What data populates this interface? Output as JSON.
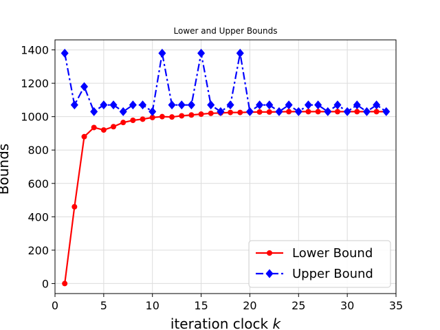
{
  "chart_data": {
    "type": "line",
    "title": "Lower and Upper Bounds",
    "xlabel": "iteration clock",
    "xlabel_var": "k",
    "ylabel": "Bounds",
    "xlim": [
      0,
      35
    ],
    "ylim": [
      -60,
      1460
    ],
    "xticks": [
      0,
      5,
      10,
      15,
      20,
      25,
      30,
      35
    ],
    "yticks": [
      0,
      200,
      400,
      600,
      800,
      1000,
      1200,
      1400
    ],
    "grid": true,
    "legend_position": "lower-right",
    "series": [
      {
        "name": "Lower Bound",
        "color": "#ff0000",
        "marker": "circle",
        "linestyle": "solid",
        "x": [
          1,
          2,
          3,
          4,
          5,
          6,
          7,
          8,
          9,
          10,
          11,
          12,
          13,
          14,
          15,
          16,
          17,
          18,
          19,
          20,
          21,
          22,
          23,
          24,
          25,
          26,
          27,
          28,
          29,
          30,
          31,
          32,
          33,
          34
        ],
        "values": [
          0,
          460,
          880,
          935,
          920,
          940,
          965,
          978,
          985,
          995,
          1000,
          998,
          1005,
          1010,
          1015,
          1020,
          1022,
          1025,
          1025,
          1027,
          1028,
          1028,
          1029,
          1030,
          1030,
          1030,
          1030,
          1030,
          1030,
          1030,
          1030,
          1030,
          1030,
          1030
        ]
      },
      {
        "name": "Upper Bound",
        "color": "#0000ff",
        "marker": "diamond",
        "linestyle": "dashdot",
        "x": [
          1,
          2,
          3,
          4,
          5,
          6,
          7,
          8,
          9,
          10,
          11,
          12,
          13,
          14,
          15,
          16,
          17,
          18,
          19,
          20,
          21,
          22,
          23,
          24,
          25,
          26,
          27,
          28,
          29,
          30,
          31,
          32,
          33,
          34
        ],
        "values": [
          1380,
          1070,
          1180,
          1030,
          1070,
          1070,
          1030,
          1070,
          1070,
          1030,
          1380,
          1070,
          1070,
          1070,
          1380,
          1070,
          1030,
          1070,
          1380,
          1030,
          1070,
          1070,
          1030,
          1070,
          1030,
          1070,
          1070,
          1030,
          1070,
          1030,
          1070,
          1030,
          1070,
          1030
        ]
      }
    ]
  }
}
